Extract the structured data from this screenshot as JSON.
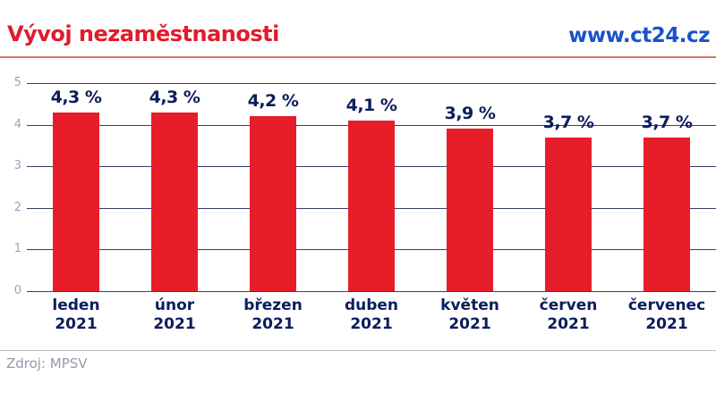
{
  "header": {
    "title": "Vývoj nezaměstnanosti",
    "site": "www.ct24.cz"
  },
  "footer": {
    "source": "Zdroj: MPSV"
  },
  "colors": {
    "bar": "#e71d29",
    "title_red": "#e11b2a",
    "site_blue": "#1753c8",
    "navy": "#0b1d5c",
    "grid": "#343f6d",
    "tick": "#9fa0b5",
    "rule_red": "#e0756e",
    "rule_gray": "#b9bac6",
    "source_gray": "#9698ad"
  },
  "chart_data": {
    "type": "bar",
    "title": "Vývoj nezaměstnanosti",
    "xlabel": "",
    "ylabel": "",
    "ylim": [
      0,
      5
    ],
    "yticks": [
      0,
      1,
      2,
      3,
      4,
      5
    ],
    "grid": true,
    "legend": false,
    "bar_color": "#e71d29",
    "categories": [
      {
        "month": "leden",
        "year": "2021"
      },
      {
        "month": "únor",
        "year": "2021"
      },
      {
        "month": "březen",
        "year": "2021"
      },
      {
        "month": "duben",
        "year": "2021"
      },
      {
        "month": "květen",
        "year": "2021"
      },
      {
        "month": "červen",
        "year": "2021"
      },
      {
        "month": "červenec",
        "year": "2021"
      }
    ],
    "values": [
      4.3,
      4.3,
      4.2,
      4.1,
      3.9,
      3.7,
      3.7
    ],
    "value_labels": [
      "4,3 %",
      "4,3 %",
      "4,2 %",
      "4,1 %",
      "3,9 %",
      "3,7 %",
      "3,7 %"
    ],
    "source": "Zdroj: MPSV"
  }
}
